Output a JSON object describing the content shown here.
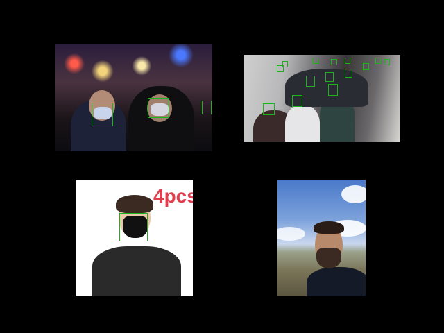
{
  "images": [
    {
      "id": "crowd-night",
      "boxes": 3
    },
    {
      "id": "crowd-escalator",
      "boxes": 14
    },
    {
      "id": "product",
      "overlay_text": "4pcs",
      "boxes": 1
    },
    {
      "id": "selfie",
      "boxes": 0
    }
  ],
  "colors": {
    "background": "#000000",
    "detection_box": "#1db31d",
    "overlay_text": "#e0404e"
  }
}
